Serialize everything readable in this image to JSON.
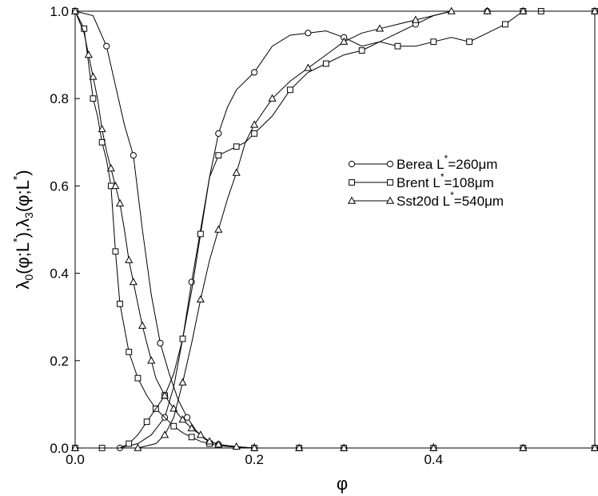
{
  "chart_data": {
    "type": "line",
    "xlabel": "φ",
    "ylabel": {
      "lam": "λ",
      "s0": "0",
      "s3": "3",
      "phi": "φ",
      "L": "L",
      "star": "*",
      "open": "(",
      "semi": ";",
      "close": ")",
      "comma": ","
    },
    "xlim": [
      0,
      0.58
    ],
    "ylim": [
      0,
      1
    ],
    "x_ticks": [
      "0.0",
      "0.2",
      "0.4"
    ],
    "x_tick_values": [
      0,
      0.2,
      0.4
    ],
    "y_ticks": [
      "0.0",
      "0.2",
      "0.4",
      "0.6",
      "0.8",
      "1.0"
    ],
    "y_tick_values": [
      0,
      0.2,
      0.4,
      0.6,
      0.8,
      1.0
    ],
    "grid": false,
    "legend_position": "center-right",
    "legend": [
      {
        "marker": "circle",
        "pre": "Berea L",
        "star": "*",
        "post": "=260μm"
      },
      {
        "marker": "square",
        "pre": "Brent L",
        "star": "*",
        "post": "=108μm"
      },
      {
        "marker": "triangle",
        "pre": "Sst20d L",
        "star": "*",
        "post": "=540μm"
      }
    ],
    "series": [
      {
        "name": "Berea L*=260μm (λ0, decreasing)",
        "marker": "circle",
        "x": [
          0.0,
          0.02,
          0.035,
          0.045,
          0.055,
          0.065,
          0.075,
          0.085,
          0.095,
          0.105,
          0.115,
          0.125,
          0.135,
          0.145,
          0.16,
          0.18,
          0.2,
          0.25,
          0.3,
          0.4,
          0.5,
          0.58
        ],
        "y": [
          1.0,
          0.99,
          0.92,
          0.83,
          0.74,
          0.67,
          0.5,
          0.35,
          0.24,
          0.17,
          0.11,
          0.07,
          0.04,
          0.02,
          0.008,
          0.003,
          0.0,
          0.0,
          0.0,
          0.0,
          0.0,
          0.0
        ],
        "marker_idx": [
          0,
          2,
          5,
          8,
          11,
          14,
          16,
          17,
          18,
          19,
          20,
          21
        ]
      },
      {
        "name": "Berea L*=260μm (λ3, increasing)",
        "marker": "circle",
        "x": [
          0.0,
          0.05,
          0.07,
          0.085,
          0.1,
          0.11,
          0.12,
          0.13,
          0.14,
          0.15,
          0.16,
          0.17,
          0.18,
          0.2,
          0.22,
          0.24,
          0.26,
          0.28,
          0.3,
          0.32,
          0.34,
          0.36,
          0.38,
          0.4,
          0.42,
          0.46,
          0.5,
          0.58
        ],
        "y": [
          0.0,
          0.0,
          0.01,
          0.03,
          0.07,
          0.14,
          0.25,
          0.38,
          0.5,
          0.62,
          0.72,
          0.78,
          0.82,
          0.86,
          0.92,
          0.945,
          0.95,
          0.955,
          0.94,
          0.92,
          0.93,
          0.95,
          0.97,
          0.99,
          1.0,
          1.0,
          1.0,
          1.0
        ],
        "marker_idx": [
          0,
          1,
          4,
          7,
          10,
          13,
          16,
          18,
          22,
          25,
          26
        ]
      },
      {
        "name": "Brent L*=108μm (λ0, decreasing)",
        "marker": "square",
        "x": [
          0.0,
          0.01,
          0.015,
          0.02,
          0.025,
          0.03,
          0.035,
          0.04,
          0.045,
          0.05,
          0.06,
          0.07,
          0.08,
          0.09,
          0.1,
          0.11,
          0.12,
          0.13,
          0.14,
          0.15,
          0.16,
          0.18,
          0.2,
          0.25,
          0.3,
          0.4,
          0.5,
          0.58
        ],
        "y": [
          1.0,
          0.96,
          0.88,
          0.8,
          0.76,
          0.7,
          0.66,
          0.6,
          0.45,
          0.33,
          0.22,
          0.16,
          0.12,
          0.09,
          0.07,
          0.05,
          0.035,
          0.025,
          0.015,
          0.01,
          0.005,
          0.002,
          0.0,
          0.0,
          0.0,
          0.0,
          0.0,
          0.0
        ],
        "marker_idx": [
          0,
          1,
          3,
          5,
          7,
          8,
          9,
          10,
          11,
          13,
          15,
          17,
          19,
          22,
          23,
          24,
          25,
          26,
          27
        ]
      },
      {
        "name": "Brent L*=108μm (λ3, increasing)",
        "marker": "square",
        "x": [
          0.0,
          0.03,
          0.05,
          0.06,
          0.07,
          0.08,
          0.09,
          0.1,
          0.11,
          0.12,
          0.13,
          0.14,
          0.15,
          0.16,
          0.17,
          0.18,
          0.19,
          0.2,
          0.22,
          0.24,
          0.26,
          0.28,
          0.3,
          0.32,
          0.34,
          0.36,
          0.38,
          0.4,
          0.42,
          0.44,
          0.46,
          0.48,
          0.5,
          0.52,
          0.58
        ],
        "y": [
          0.0,
          0.0,
          0.0,
          0.01,
          0.03,
          0.06,
          0.09,
          0.12,
          0.17,
          0.25,
          0.36,
          0.49,
          0.62,
          0.67,
          0.68,
          0.69,
          0.7,
          0.72,
          0.76,
          0.82,
          0.86,
          0.88,
          0.9,
          0.91,
          0.93,
          0.92,
          0.92,
          0.93,
          0.94,
          0.93,
          0.95,
          0.97,
          1.0,
          1.0,
          1.0
        ],
        "marker_idx": [
          0,
          1,
          3,
          5,
          7,
          9,
          11,
          13,
          15,
          17,
          19,
          21,
          23,
          25,
          27,
          29,
          31,
          32,
          33,
          34
        ]
      },
      {
        "name": "Sst20d L*=540μm (λ0, decreasing)",
        "marker": "triangle",
        "x": [
          0.0,
          0.01,
          0.015,
          0.02,
          0.025,
          0.03,
          0.035,
          0.04,
          0.045,
          0.05,
          0.055,
          0.06,
          0.065,
          0.07,
          0.075,
          0.08,
          0.085,
          0.09,
          0.1,
          0.11,
          0.12,
          0.13,
          0.14,
          0.15,
          0.16,
          0.18,
          0.2,
          0.25,
          0.3,
          0.4,
          0.5,
          0.58
        ],
        "y": [
          1.0,
          0.95,
          0.9,
          0.85,
          0.8,
          0.73,
          0.68,
          0.64,
          0.6,
          0.56,
          0.5,
          0.43,
          0.38,
          0.33,
          0.28,
          0.24,
          0.2,
          0.16,
          0.12,
          0.09,
          0.065,
          0.045,
          0.03,
          0.015,
          0.008,
          0.003,
          0.0,
          0.0,
          0.0,
          0.0,
          0.0,
          0.0
        ],
        "marker_idx": [
          0,
          2,
          3,
          5,
          7,
          8,
          9,
          11,
          12,
          14,
          16,
          18,
          19,
          20,
          21,
          22,
          23,
          24,
          25,
          26,
          27,
          28,
          29,
          30,
          31
        ]
      },
      {
        "name": "Sst20d L*=540μm (λ3, increasing)",
        "marker": "triangle",
        "x": [
          0.0,
          0.05,
          0.07,
          0.09,
          0.1,
          0.11,
          0.12,
          0.13,
          0.14,
          0.15,
          0.16,
          0.17,
          0.18,
          0.19,
          0.2,
          0.21,
          0.22,
          0.24,
          0.26,
          0.28,
          0.3,
          0.32,
          0.34,
          0.36,
          0.38,
          0.4,
          0.42,
          0.44,
          0.46,
          0.5,
          0.58
        ],
        "y": [
          0.0,
          0.0,
          0.0,
          0.01,
          0.03,
          0.07,
          0.15,
          0.24,
          0.34,
          0.43,
          0.5,
          0.57,
          0.63,
          0.7,
          0.74,
          0.77,
          0.8,
          0.84,
          0.87,
          0.9,
          0.93,
          0.95,
          0.96,
          0.97,
          0.98,
          0.99,
          1.0,
          1.0,
          1.0,
          1.0,
          1.0
        ],
        "marker_idx": [
          0,
          2,
          4,
          6,
          8,
          10,
          12,
          14,
          16,
          18,
          20,
          22,
          24,
          26,
          28,
          29,
          30
        ]
      }
    ]
  }
}
